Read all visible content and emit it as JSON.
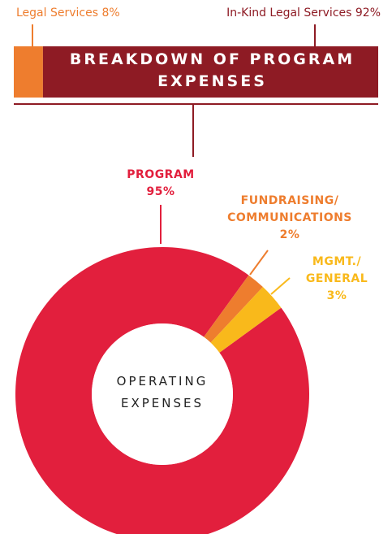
{
  "chart_data": [
    {
      "type": "stacked-bar",
      "title": "BREAKDOWN OF PROGRAM EXPENSES",
      "series": [
        {
          "name": "Legal Services",
          "color": "#ee7d2e",
          "values": [
            8
          ],
          "value_labels": [
            "8%"
          ]
        },
        {
          "name": "In-Kind Legal Services",
          "color": "#8e1b24",
          "values": [
            92
          ],
          "value_labels": [
            "92%"
          ]
        }
      ]
    },
    {
      "type": "donut",
      "center_label": "OPERATING EXPENSES",
      "categories": [
        "PROGRAM",
        "FUNDRAISING/ COMMUNICATIONS",
        "MGMT./ GENERAL"
      ],
      "values": [
        95,
        2,
        3
      ],
      "value_labels": [
        "95%",
        "2%",
        "3%"
      ],
      "colors": [
        "#e21f3d",
        "#ee7d2e",
        "#f9b91b"
      ]
    }
  ]
}
